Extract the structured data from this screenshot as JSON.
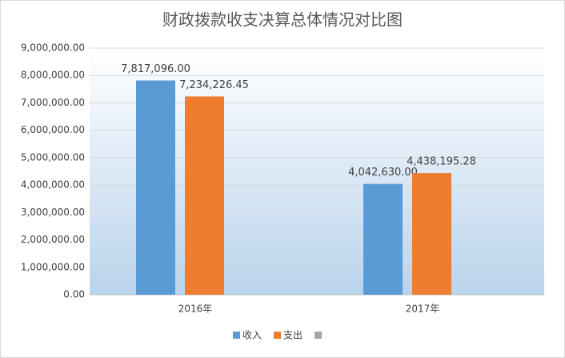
{
  "chart_data": {
    "type": "bar",
    "title": "财政拨款收支决算总体情况对比图",
    "categories": [
      "2016年",
      "2017年"
    ],
    "series": [
      {
        "name": "收入",
        "color": "#5b9bd5",
        "values": [
          7817096.0,
          4042630.0
        ],
        "value_labels": [
          "7,817,096.00",
          "4,042,630.00"
        ]
      },
      {
        "name": "支出",
        "color": "#ed7d31",
        "values": [
          7234226.45,
          4438195.28
        ],
        "value_labels": [
          "7,234,226.45",
          "4,438,195.28"
        ]
      }
    ],
    "ylim": [
      0,
      9000000
    ],
    "yticks": [
      {
        "value": 0,
        "label": "0.00"
      },
      {
        "value": 1000000,
        "label": "1,000,000.00"
      },
      {
        "value": 2000000,
        "label": "2,000,000.00"
      },
      {
        "value": 3000000,
        "label": "3,000,000.00"
      },
      {
        "value": 4000000,
        "label": "4,000,000.00"
      },
      {
        "value": 5000000,
        "label": "5,000,000.00"
      },
      {
        "value": 6000000,
        "label": "6,000,000.00"
      },
      {
        "value": 7000000,
        "label": "7,000,000.00"
      },
      {
        "value": 8000000,
        "label": "8,000,000.00"
      },
      {
        "value": 9000000,
        "label": "9,000,000.00"
      }
    ],
    "grid": true
  }
}
